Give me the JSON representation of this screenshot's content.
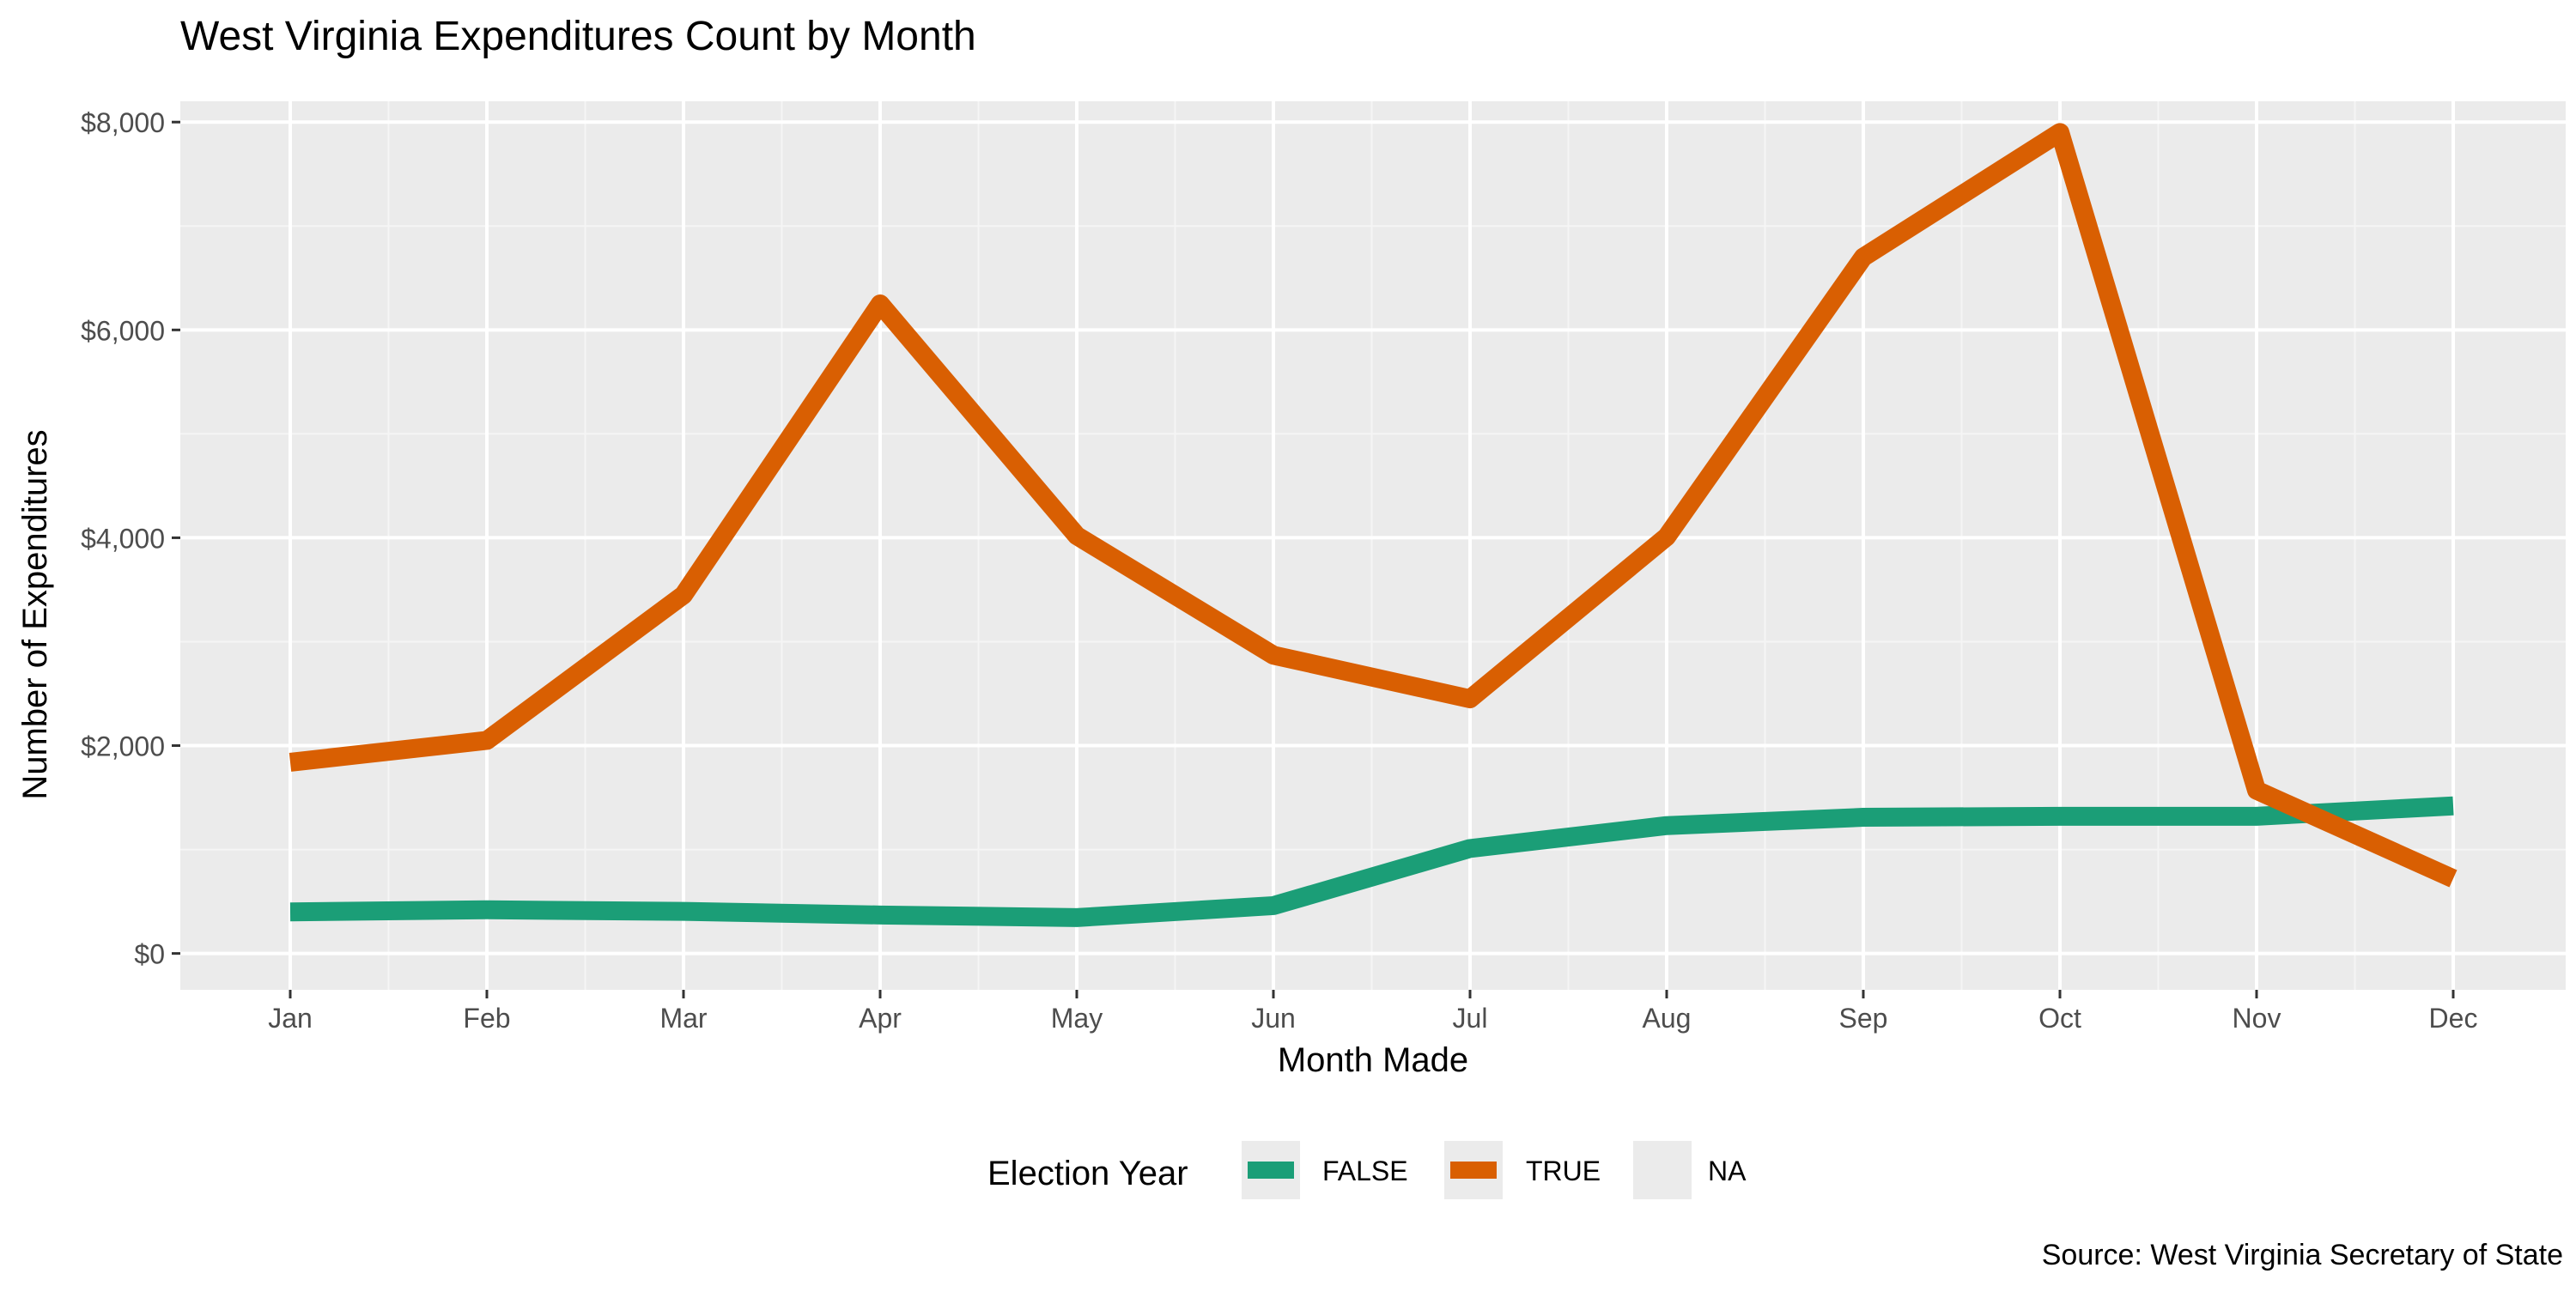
{
  "chart_data": {
    "type": "line",
    "title": "West Virginia Expenditures Count by Month",
    "xlabel": "Month Made",
    "ylabel": "Number of Expenditures",
    "caption": "Source: West Virginia Secretary of State",
    "categories": [
      "Jan",
      "Feb",
      "Mar",
      "Apr",
      "May",
      "Jun",
      "Jul",
      "Aug",
      "Sep",
      "Oct",
      "Nov",
      "Dec"
    ],
    "y_ticks": [
      0,
      2000,
      4000,
      6000,
      8000
    ],
    "y_tick_labels": [
      "$0",
      "$2,000",
      "$4,000",
      "$6,000",
      "$8,000"
    ],
    "ylim": [
      -350,
      8200
    ],
    "grid": true,
    "legend": {
      "title": "Election Year",
      "position": "bottom",
      "entries": [
        {
          "label": "FALSE",
          "color": "#1B9E77"
        },
        {
          "label": "TRUE",
          "color": "#D95F02"
        },
        {
          "label": "NA",
          "color": ""
        }
      ]
    },
    "series": [
      {
        "name": "FALSE",
        "color": "#1B9E77",
        "values": [
          400,
          420,
          405,
          370,
          345,
          460,
          1010,
          1230,
          1310,
          1320,
          1320,
          1420
        ]
      },
      {
        "name": "TRUE",
        "color": "#D95F02",
        "values": [
          1840,
          2050,
          3450,
          6250,
          4020,
          2870,
          2450,
          4010,
          6700,
          7900,
          1570,
          720
        ]
      }
    ]
  },
  "colors": {
    "panel_background": "#EBEBEB",
    "grid_major": "#FFFFFF",
    "grid_minor": "#F5F5F5",
    "text_dark": "#000000",
    "tick_text": "#4D4D4D"
  }
}
